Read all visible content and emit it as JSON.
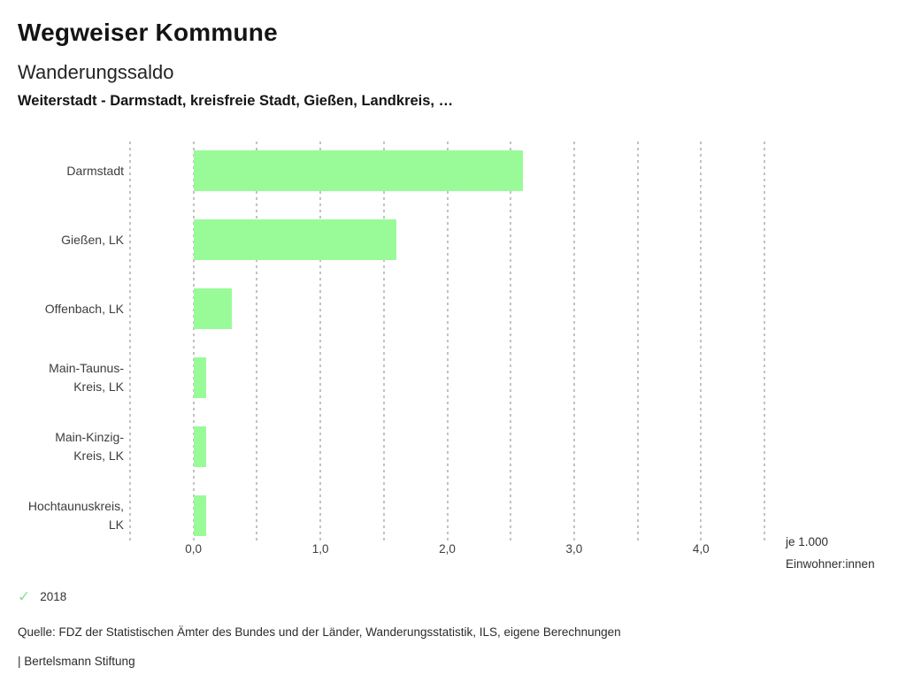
{
  "header": {
    "app_title": "Wegweiser Kommune",
    "chart_title": "Wanderungssaldo",
    "subtitle": "Weiterstadt - Darmstadt, kreisfreie Stadt, Gießen, Landkreis, …"
  },
  "chart_data": {
    "type": "bar",
    "orientation": "horizontal",
    "title": "Wanderungssaldo",
    "categories": [
      "Darmstadt",
      "Gießen, LK",
      "Offenbach, LK",
      "Main-Taunus-Kreis, LK",
      "Main-Kinzig-Kreis, LK",
      "Hochtaunuskreis, LK"
    ],
    "category_label_lines": [
      [
        "Darmstadt"
      ],
      [
        "Gießen, LK"
      ],
      [
        "Offenbach, LK"
      ],
      [
        "Main-Taunus-",
        "Kreis, LK"
      ],
      [
        "Main-Kinzig-",
        "Kreis, LK"
      ],
      [
        "Hochtaunuskreis,",
        "LK"
      ]
    ],
    "series": [
      {
        "name": "2018",
        "values": [
          2.6,
          1.6,
          0.3,
          0.1,
          0.1,
          0.1
        ]
      }
    ],
    "xlim": [
      -0.5,
      4.5
    ],
    "x_ticks": [
      0,
      1,
      2,
      3,
      4
    ],
    "x_tick_labels": [
      "0,0",
      "1,0",
      "2,0",
      "3,0",
      "4,0"
    ],
    "gridline_step": 0.5,
    "grid": true,
    "xlabel_lines": [
      "je 1.000",
      "Einwohner:innen"
    ],
    "bar_color": "#98fb98",
    "gridline_color": "#c2c2c2",
    "legend_position": "bottom-left"
  },
  "legend": {
    "check_icon": "✓",
    "check_color": "#8ce08c",
    "label": "2018"
  },
  "footer": {
    "source": "Quelle: FDZ der Statistischen Ämter des Bundes und der Länder, Wanderungsstatistik, ILS, eigene Berechnungen",
    "branding": "| Bertelsmann Stiftung"
  }
}
